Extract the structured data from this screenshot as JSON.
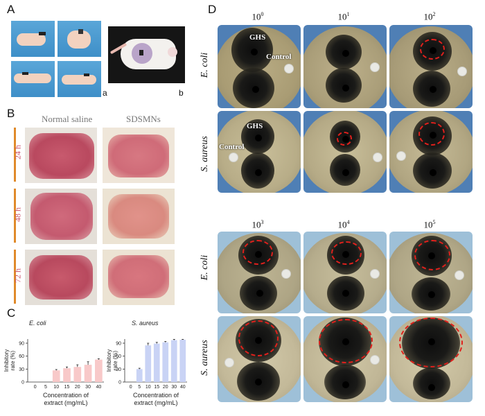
{
  "panels": {
    "a": "A",
    "b": "B",
    "c": "C",
    "d": "D"
  },
  "panel_a": {
    "sub_a": "a",
    "sub_b": "b"
  },
  "panel_b": {
    "columns": [
      "Normal saline",
      "SDSMNs"
    ],
    "times": [
      "24 h",
      "48 h",
      "72 h"
    ]
  },
  "panel_d": {
    "top_exponents": [
      {
        "base": "10",
        "exp": "0"
      },
      {
        "base": "10",
        "exp": "1"
      },
      {
        "base": "10",
        "exp": "2"
      }
    ],
    "bottom_exponents": [
      {
        "base": "10",
        "exp": "3"
      },
      {
        "base": "10",
        "exp": "4"
      },
      {
        "base": "10",
        "exp": "5"
      }
    ],
    "rows": [
      "E. coli",
      "S. aureus",
      "E. coli",
      "S. aureus"
    ],
    "labels": {
      "ghs": "GHS",
      "control": "Control"
    }
  },
  "colors": {
    "ecoli_bar": "#f8c9c9",
    "saureus_bar": "#c9d3f5",
    "ring": "#e0201c",
    "time_text": "#c9506a"
  },
  "chart_data": [
    {
      "type": "bar",
      "title": "E. coli",
      "xlabel": "Concentration of extract (mg/mL)",
      "ylabel": "Inhibitory rate (%)",
      "categories": [
        "0",
        "5",
        "10",
        "15",
        "20",
        "30",
        "40"
      ],
      "values": [
        null,
        null,
        27,
        32,
        35,
        40,
        52
      ],
      "errors": [
        null,
        null,
        2,
        3,
        5,
        7,
        2
      ],
      "ylim": [
        0,
        90
      ],
      "yticks": [
        "0",
        "30",
        "60",
        "90"
      ]
    },
    {
      "type": "bar",
      "title": "S. aureus",
      "xlabel": "Concentration of extract (mg/mL)",
      "ylabel": "Inhibitory rate (%)",
      "categories": [
        "0",
        "5",
        "10",
        "15",
        "20",
        "30",
        "40"
      ],
      "values": [
        null,
        30,
        85,
        89,
        92,
        97,
        98
      ],
      "errors": [
        null,
        2,
        5,
        3,
        2,
        2,
        1
      ],
      "ylim": [
        0,
        90
      ],
      "yticks": [
        "0",
        "30",
        "60",
        "90"
      ]
    }
  ]
}
